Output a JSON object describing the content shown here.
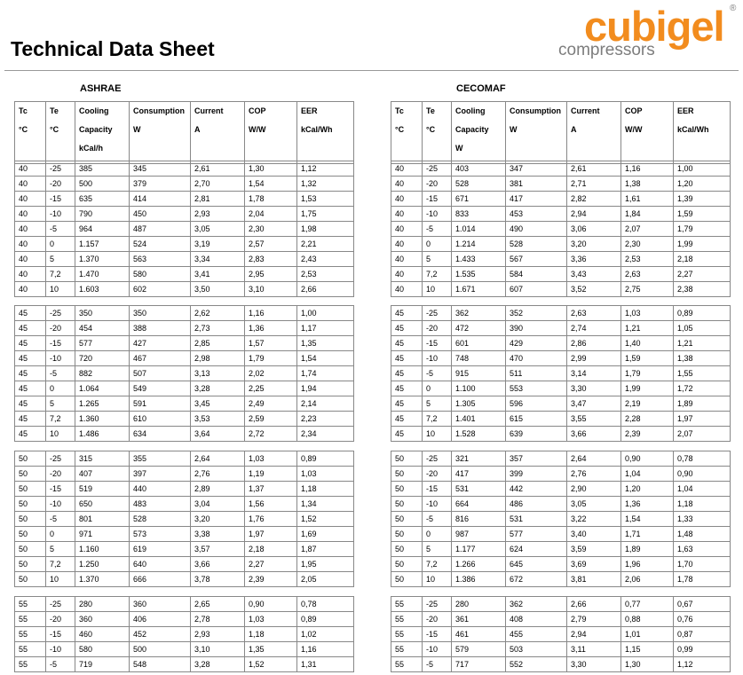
{
  "header": {
    "title": "Technical Data Sheet",
    "logo": "cubigel",
    "logo_subtitle": "compressors",
    "logo_mark": "®"
  },
  "tables": [
    {
      "title": "ASHRAE",
      "columns": [
        [
          "Tc",
          "°C"
        ],
        [
          "Te",
          "°C"
        ],
        [
          "Cooling",
          "Capacity",
          "kCal/h"
        ],
        [
          "Consumption",
          "W"
        ],
        [
          "Current",
          "A"
        ],
        [
          "COP",
          "W/W"
        ],
        [
          "EER",
          "kCal/Wh"
        ]
      ],
      "groups": [
        [
          [
            "40",
            "-25",
            "385",
            "345",
            "2,61",
            "1,30",
            "1,12"
          ],
          [
            "40",
            "-20",
            "500",
            "379",
            "2,70",
            "1,54",
            "1,32"
          ],
          [
            "40",
            "-15",
            "635",
            "414",
            "2,81",
            "1,78",
            "1,53"
          ],
          [
            "40",
            "-10",
            "790",
            "450",
            "2,93",
            "2,04",
            "1,75"
          ],
          [
            "40",
            "-5",
            "964",
            "487",
            "3,05",
            "2,30",
            "1,98"
          ],
          [
            "40",
            "0",
            "1.157",
            "524",
            "3,19",
            "2,57",
            "2,21"
          ],
          [
            "40",
            "5",
            "1.370",
            "563",
            "3,34",
            "2,83",
            "2,43"
          ],
          [
            "40",
            "7,2",
            "1.470",
            "580",
            "3,41",
            "2,95",
            "2,53"
          ],
          [
            "40",
            "10",
            "1.603",
            "602",
            "3,50",
            "3,10",
            "2,66"
          ]
        ],
        [
          [
            "45",
            "-25",
            "350",
            "350",
            "2,62",
            "1,16",
            "1,00"
          ],
          [
            "45",
            "-20",
            "454",
            "388",
            "2,73",
            "1,36",
            "1,17"
          ],
          [
            "45",
            "-15",
            "577",
            "427",
            "2,85",
            "1,57",
            "1,35"
          ],
          [
            "45",
            "-10",
            "720",
            "467",
            "2,98",
            "1,79",
            "1,54"
          ],
          [
            "45",
            "-5",
            "882",
            "507",
            "3,13",
            "2,02",
            "1,74"
          ],
          [
            "45",
            "0",
            "1.064",
            "549",
            "3,28",
            "2,25",
            "1,94"
          ],
          [
            "45",
            "5",
            "1.265",
            "591",
            "3,45",
            "2,49",
            "2,14"
          ],
          [
            "45",
            "7,2",
            "1.360",
            "610",
            "3,53",
            "2,59",
            "2,23"
          ],
          [
            "45",
            "10",
            "1.486",
            "634",
            "3,64",
            "2,72",
            "2,34"
          ]
        ],
        [
          [
            "50",
            "-25",
            "315",
            "355",
            "2,64",
            "1,03",
            "0,89"
          ],
          [
            "50",
            "-20",
            "407",
            "397",
            "2,76",
            "1,19",
            "1,03"
          ],
          [
            "50",
            "-15",
            "519",
            "440",
            "2,89",
            "1,37",
            "1,18"
          ],
          [
            "50",
            "-10",
            "650",
            "483",
            "3,04",
            "1,56",
            "1,34"
          ],
          [
            "50",
            "-5",
            "801",
            "528",
            "3,20",
            "1,76",
            "1,52"
          ],
          [
            "50",
            "0",
            "971",
            "573",
            "3,38",
            "1,97",
            "1,69"
          ],
          [
            "50",
            "5",
            "1.160",
            "619",
            "3,57",
            "2,18",
            "1,87"
          ],
          [
            "50",
            "7,2",
            "1.250",
            "640",
            "3,66",
            "2,27",
            "1,95"
          ],
          [
            "50",
            "10",
            "1.370",
            "666",
            "3,78",
            "2,39",
            "2,05"
          ]
        ],
        [
          [
            "55",
            "-25",
            "280",
            "360",
            "2,65",
            "0,90",
            "0,78"
          ],
          [
            "55",
            "-20",
            "360",
            "406",
            "2,78",
            "1,03",
            "0,89"
          ],
          [
            "55",
            "-15",
            "460",
            "452",
            "2,93",
            "1,18",
            "1,02"
          ],
          [
            "55",
            "-10",
            "580",
            "500",
            "3,10",
            "1,35",
            "1,16"
          ],
          [
            "55",
            "-5",
            "719",
            "548",
            "3,28",
            "1,52",
            "1,31"
          ]
        ]
      ]
    },
    {
      "title": "CECOMAF",
      "columns": [
        [
          "Tc",
          "°C"
        ],
        [
          "Te",
          "°C"
        ],
        [
          "Cooling",
          "Capacity",
          "W"
        ],
        [
          "Consumption",
          "W"
        ],
        [
          "Current",
          "A"
        ],
        [
          "COP",
          "W/W"
        ],
        [
          "EER",
          "kCal/Wh"
        ]
      ],
      "groups": [
        [
          [
            "40",
            "-25",
            "403",
            "347",
            "2,61",
            "1,16",
            "1,00"
          ],
          [
            "40",
            "-20",
            "528",
            "381",
            "2,71",
            "1,38",
            "1,20"
          ],
          [
            "40",
            "-15",
            "671",
            "417",
            "2,82",
            "1,61",
            "1,39"
          ],
          [
            "40",
            "-10",
            "833",
            "453",
            "2,94",
            "1,84",
            "1,59"
          ],
          [
            "40",
            "-5",
            "1.014",
            "490",
            "3,06",
            "2,07",
            "1,79"
          ],
          [
            "40",
            "0",
            "1.214",
            "528",
            "3,20",
            "2,30",
            "1,99"
          ],
          [
            "40",
            "5",
            "1.433",
            "567",
            "3,36",
            "2,53",
            "2,18"
          ],
          [
            "40",
            "7,2",
            "1.535",
            "584",
            "3,43",
            "2,63",
            "2,27"
          ],
          [
            "40",
            "10",
            "1.671",
            "607",
            "3,52",
            "2,75",
            "2,38"
          ]
        ],
        [
          [
            "45",
            "-25",
            "362",
            "352",
            "2,63",
            "1,03",
            "0,89"
          ],
          [
            "45",
            "-20",
            "472",
            "390",
            "2,74",
            "1,21",
            "1,05"
          ],
          [
            "45",
            "-15",
            "601",
            "429",
            "2,86",
            "1,40",
            "1,21"
          ],
          [
            "45",
            "-10",
            "748",
            "470",
            "2,99",
            "1,59",
            "1,38"
          ],
          [
            "45",
            "-5",
            "915",
            "511",
            "3,14",
            "1,79",
            "1,55"
          ],
          [
            "45",
            "0",
            "1.100",
            "553",
            "3,30",
            "1,99",
            "1,72"
          ],
          [
            "45",
            "5",
            "1.305",
            "596",
            "3,47",
            "2,19",
            "1,89"
          ],
          [
            "45",
            "7,2",
            "1.401",
            "615",
            "3,55",
            "2,28",
            "1,97"
          ],
          [
            "45",
            "10",
            "1.528",
            "639",
            "3,66",
            "2,39",
            "2,07"
          ]
        ],
        [
          [
            "50",
            "-25",
            "321",
            "357",
            "2,64",
            "0,90",
            "0,78"
          ],
          [
            "50",
            "-20",
            "417",
            "399",
            "2,76",
            "1,04",
            "0,90"
          ],
          [
            "50",
            "-15",
            "531",
            "442",
            "2,90",
            "1,20",
            "1,04"
          ],
          [
            "50",
            "-10",
            "664",
            "486",
            "3,05",
            "1,36",
            "1,18"
          ],
          [
            "50",
            "-5",
            "816",
            "531",
            "3,22",
            "1,54",
            "1,33"
          ],
          [
            "50",
            "0",
            "987",
            "577",
            "3,40",
            "1,71",
            "1,48"
          ],
          [
            "50",
            "5",
            "1.177",
            "624",
            "3,59",
            "1,89",
            "1,63"
          ],
          [
            "50",
            "7,2",
            "1.266",
            "645",
            "3,69",
            "1,96",
            "1,70"
          ],
          [
            "50",
            "10",
            "1.386",
            "672",
            "3,81",
            "2,06",
            "1,78"
          ]
        ],
        [
          [
            "55",
            "-25",
            "280",
            "362",
            "2,66",
            "0,77",
            "0,67"
          ],
          [
            "55",
            "-20",
            "361",
            "408",
            "2,79",
            "0,88",
            "0,76"
          ],
          [
            "55",
            "-15",
            "461",
            "455",
            "2,94",
            "1,01",
            "0,87"
          ],
          [
            "55",
            "-10",
            "579",
            "503",
            "3,11",
            "1,15",
            "0,99"
          ],
          [
            "55",
            "-5",
            "717",
            "552",
            "3,30",
            "1,30",
            "1,12"
          ]
        ]
      ]
    }
  ]
}
